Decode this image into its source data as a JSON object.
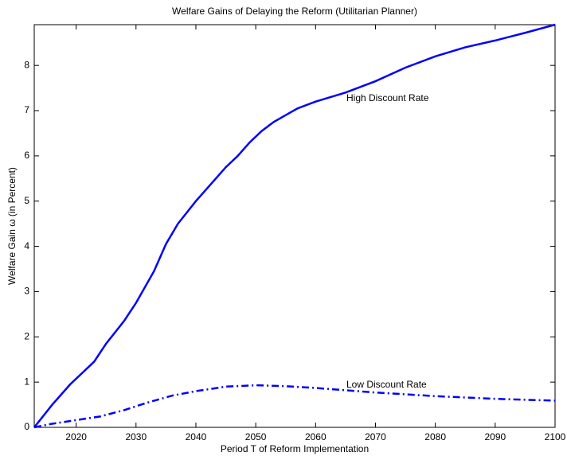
{
  "chart_data": {
    "type": "line",
    "title": "Welfare Gains of Delaying the Reform (Utilitarian Planner)",
    "x_label": "Period T of Reform Implementation",
    "y_label": "Welfare Gain  ω (in Percent)",
    "xlim": [
      2013,
      2100
    ],
    "ylim": [
      0,
      8.9
    ],
    "xticks": [
      2020,
      2030,
      2040,
      2050,
      2060,
      2070,
      2080,
      2090,
      2100
    ],
    "yticks": [
      0,
      1,
      2,
      3,
      4,
      5,
      6,
      7,
      8
    ],
    "grid": false,
    "series": [
      {
        "name": "High Discount Rate",
        "color": "#0000ff",
        "dash": "solid",
        "x": [
          2013,
          2016,
          2019,
          2023,
          2025,
          2028,
          2030,
          2033,
          2035,
          2037,
          2040,
          2043,
          2045,
          2047,
          2049,
          2051,
          2053,
          2055,
          2057,
          2060,
          2065,
          2070,
          2075,
          2080,
          2085,
          2090,
          2095,
          2100
        ],
        "values": [
          0,
          0.5,
          0.95,
          1.45,
          1.85,
          2.35,
          2.75,
          3.45,
          4.05,
          4.5,
          5.0,
          5.45,
          5.75,
          6.0,
          6.3,
          6.55,
          6.75,
          6.9,
          7.05,
          7.2,
          7.4,
          7.65,
          7.95,
          8.2,
          8.4,
          8.55,
          8.72,
          8.9
        ]
      },
      {
        "name": "Low Discount Rate",
        "color": "#0000ff",
        "dash": "dashdot",
        "x": [
          2013,
          2016,
          2020,
          2024,
          2028,
          2032,
          2036,
          2040,
          2045,
          2050,
          2055,
          2060,
          2065,
          2070,
          2075,
          2080,
          2085,
          2090,
          2095,
          2100
        ],
        "values": [
          0,
          0.08,
          0.16,
          0.24,
          0.38,
          0.55,
          0.7,
          0.8,
          0.9,
          0.93,
          0.91,
          0.87,
          0.82,
          0.77,
          0.73,
          0.69,
          0.66,
          0.63,
          0.61,
          0.59
        ]
      }
    ]
  }
}
